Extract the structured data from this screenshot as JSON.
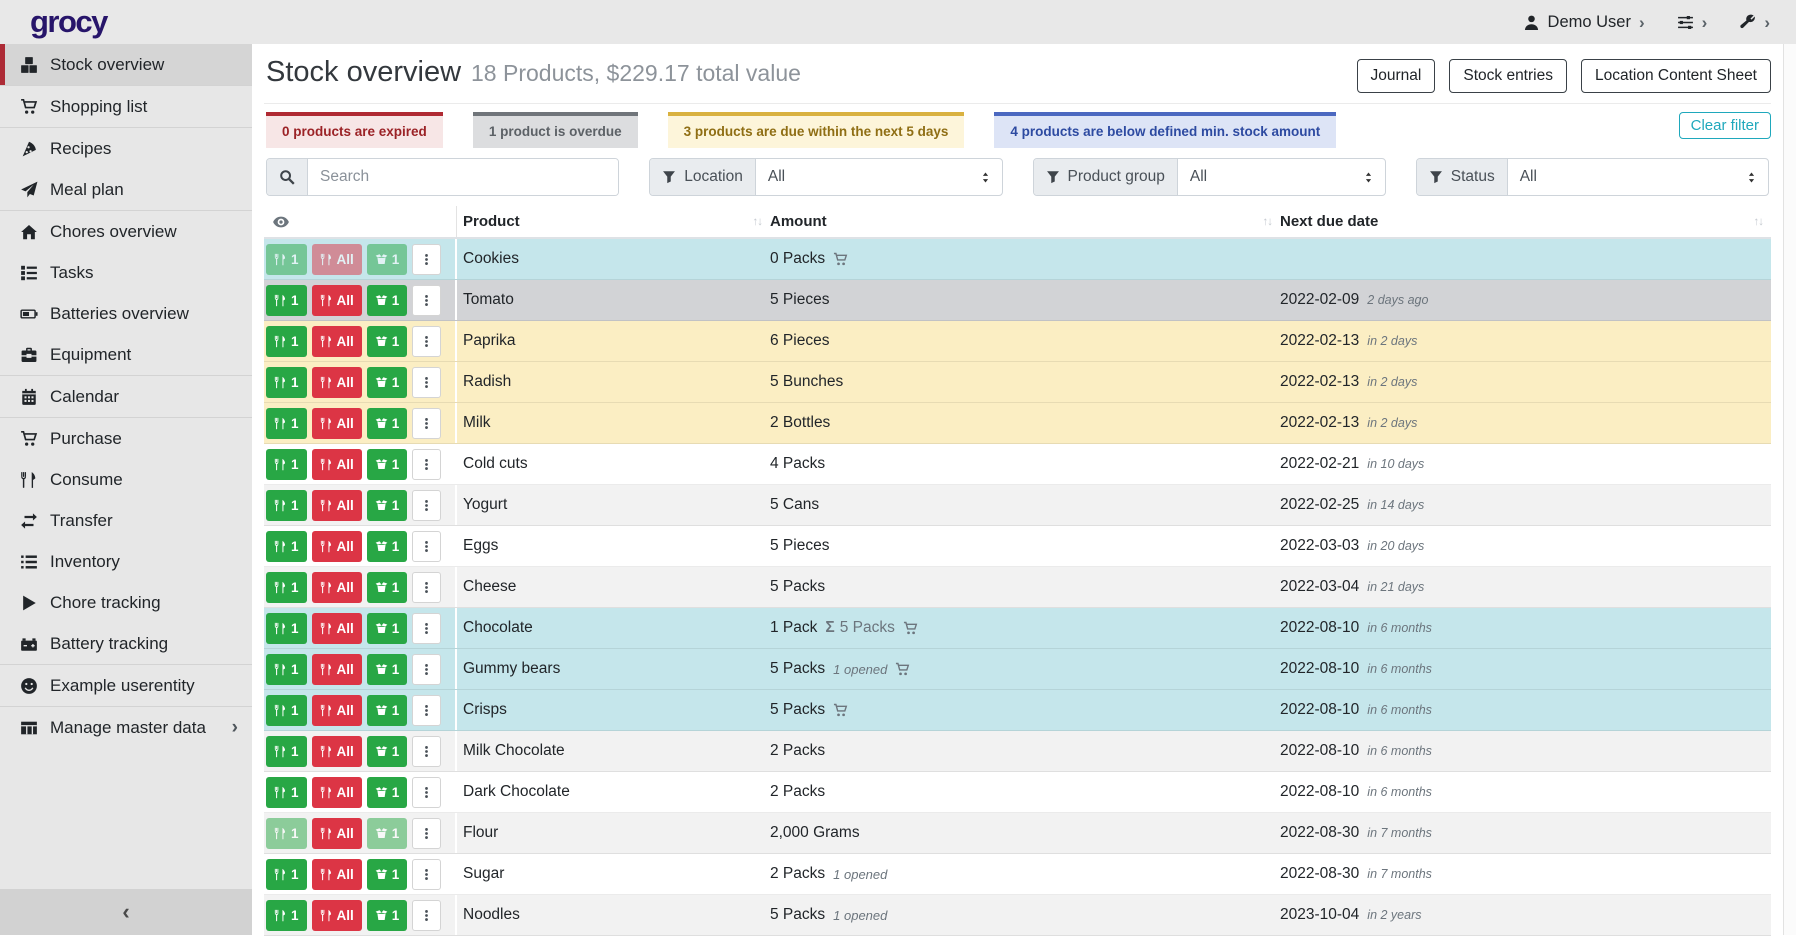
{
  "navbar": {
    "logo": "grocy",
    "user_label": "Demo User",
    "user_icon": "person",
    "settings_icon": "sliders",
    "admin_icon": "wrench",
    "chevron": "›"
  },
  "sidebar": {
    "groups": [
      [
        {
          "icon": "cubes",
          "label": "Stock overview",
          "active": true
        }
      ],
      [
        {
          "icon": "cart",
          "label": "Shopping list"
        }
      ],
      [
        {
          "icon": "pizza",
          "label": "Recipes"
        },
        {
          "icon": "plane",
          "label": "Meal plan"
        }
      ],
      [
        {
          "icon": "home",
          "label": "Chores overview"
        },
        {
          "icon": "tasks",
          "label": "Tasks"
        },
        {
          "icon": "battery",
          "label": "Batteries overview"
        },
        {
          "icon": "toolbox",
          "label": "Equipment"
        }
      ],
      [
        {
          "icon": "calendar",
          "label": "Calendar"
        }
      ],
      [
        {
          "icon": "cart",
          "label": "Purchase"
        },
        {
          "icon": "utensils",
          "label": "Consume"
        },
        {
          "icon": "transfer",
          "label": "Transfer"
        },
        {
          "icon": "list",
          "label": "Inventory"
        },
        {
          "icon": "play",
          "label": "Chore tracking"
        },
        {
          "icon": "car-battery",
          "label": "Battery tracking"
        }
      ],
      [
        {
          "icon": "smiley",
          "label": "Example userentity"
        }
      ],
      [
        {
          "icon": "table",
          "label": "Manage master data",
          "chevron": true
        }
      ]
    ],
    "collapse_icon": "‹"
  },
  "header": {
    "title": "Stock overview",
    "subtitle": "18 Products, $229.17 total value",
    "buttons": [
      "Journal",
      "Stock entries",
      "Location Content Sheet"
    ]
  },
  "status_cards": [
    {
      "text": "0 products are expired",
      "border": "#b02a33",
      "bg": "#f7e6e6",
      "color": "#9b2226"
    },
    {
      "text": "1 product is overdue",
      "border": "#70757a",
      "bg": "#dcdddf",
      "color": "#5c6166"
    },
    {
      "text": "3 products are due within the next 5 days",
      "border": "#d9b13f",
      "bg": "#fdf5da",
      "color": "#8f6e14"
    },
    {
      "text": "4 products are below defined min. stock amount",
      "border": "#4b68c0",
      "bg": "#dde4f6",
      "color": "#2d4aa1"
    }
  ],
  "clear_filter_label": "Clear filter",
  "filters": {
    "search_placeholder": "Search",
    "selects": [
      {
        "label": "Location",
        "value": "All"
      },
      {
        "label": "Product group",
        "value": "All"
      },
      {
        "label": "Status",
        "value": "All"
      }
    ]
  },
  "table": {
    "columns": [
      {
        "label": "Product"
      },
      {
        "label": "Amount"
      },
      {
        "label": "Next due date"
      }
    ],
    "action_buttons": {
      "consume_one": "1",
      "consume_all": "All",
      "open_one": "1"
    },
    "rows": [
      {
        "product": "Cookies",
        "amount": "0 Packs",
        "cart": true,
        "due": "",
        "due_relative": "",
        "status": "below-min",
        "faded": "all"
      },
      {
        "product": "Tomato",
        "amount": "5 Pieces",
        "due": "2022-02-09",
        "due_relative": "2 days ago",
        "status": "overdue"
      },
      {
        "product": "Paprika",
        "amount": "6 Pieces",
        "due": "2022-02-13",
        "due_relative": "in 2 days",
        "status": "due-soon"
      },
      {
        "product": "Radish",
        "amount": "5 Bunches",
        "due": "2022-02-13",
        "due_relative": "in 2 days",
        "status": "due-soon"
      },
      {
        "product": "Milk",
        "amount": "2 Bottles",
        "due": "2022-02-13",
        "due_relative": "in 2 days",
        "status": "due-soon"
      },
      {
        "product": "Cold cuts",
        "amount": "4 Packs",
        "due": "2022-02-21",
        "due_relative": "in 10 days"
      },
      {
        "product": "Yogurt",
        "amount": "5 Cans",
        "due": "2022-02-25",
        "due_relative": "in 14 days"
      },
      {
        "product": "Eggs",
        "amount": "5 Pieces",
        "due": "2022-03-03",
        "due_relative": "in 20 days"
      },
      {
        "product": "Cheese",
        "amount": "5 Packs",
        "due": "2022-03-04",
        "due_relative": "in 21 days"
      },
      {
        "product": "Chocolate",
        "amount": "1 Pack",
        "sum": "5 Packs",
        "cart": true,
        "due": "2022-08-10",
        "due_relative": "in 6 months",
        "status": "below-min"
      },
      {
        "product": "Gummy bears",
        "amount": "5 Packs",
        "opened": "1 opened",
        "cart": true,
        "due": "2022-08-10",
        "due_relative": "in 6 months",
        "status": "below-min"
      },
      {
        "product": "Crisps",
        "amount": "5 Packs",
        "cart": true,
        "due": "2022-08-10",
        "due_relative": "in 6 months",
        "status": "below-min"
      },
      {
        "product": "Milk Chocolate",
        "amount": "2 Packs",
        "due": "2022-08-10",
        "due_relative": "in 6 months"
      },
      {
        "product": "Dark Chocolate",
        "amount": "2 Packs",
        "due": "2022-08-10",
        "due_relative": "in 6 months"
      },
      {
        "product": "Flour",
        "amount": "2,000 Grams",
        "due": "2022-08-30",
        "due_relative": "in 7 months",
        "faded": "partial"
      },
      {
        "product": "Sugar",
        "amount": "2 Packs",
        "opened": "1 opened",
        "due": "2022-08-30",
        "due_relative": "in 7 months"
      },
      {
        "product": "Noodles",
        "amount": "5 Packs",
        "opened": "1 opened",
        "due": "2023-10-04",
        "due_relative": "in 2 years"
      }
    ]
  }
}
